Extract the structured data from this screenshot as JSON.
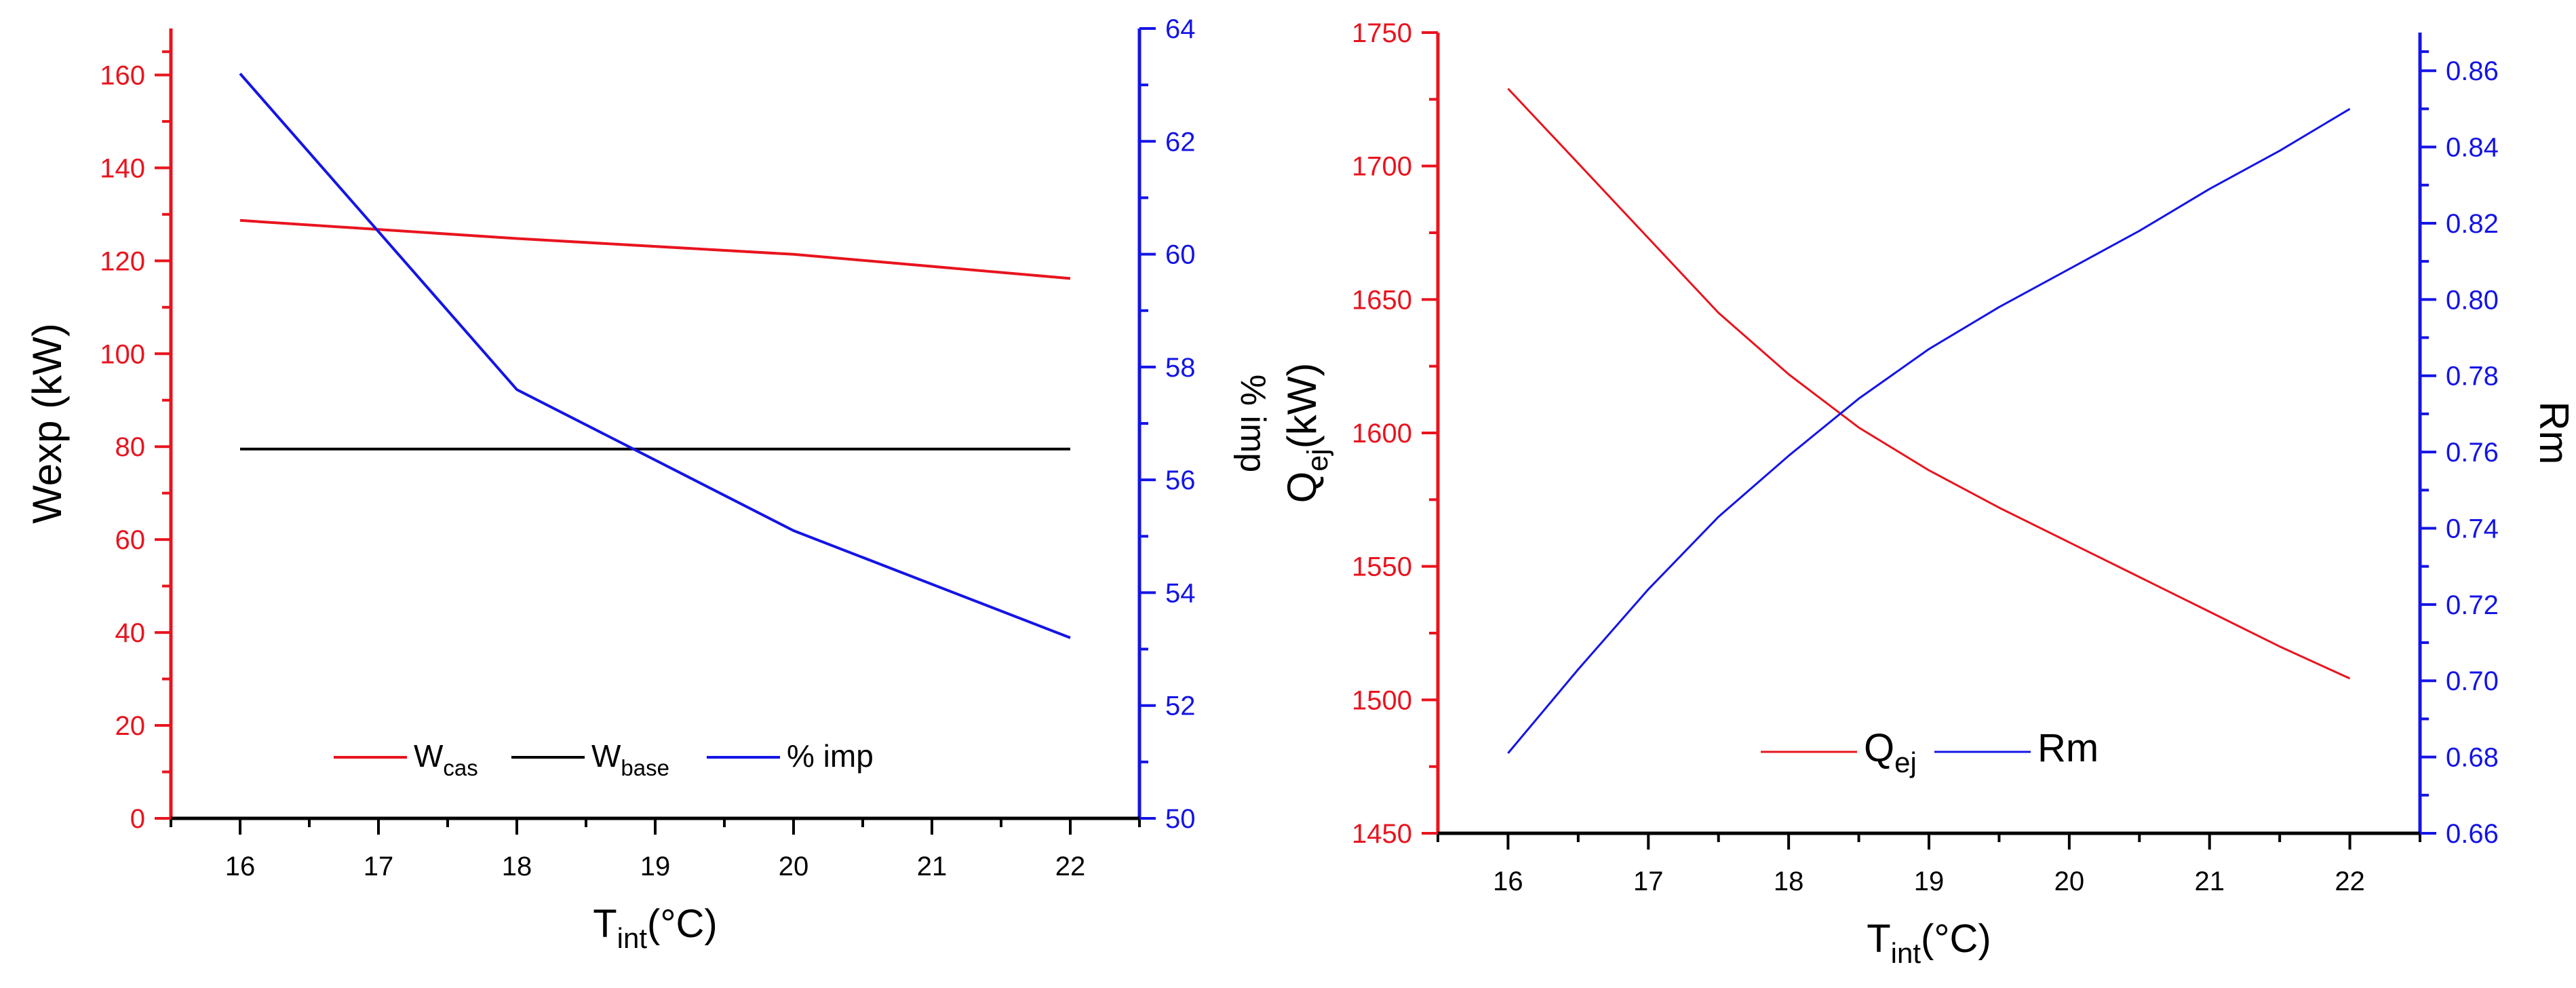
{
  "chart_data": [
    {
      "type": "line",
      "panel": "left",
      "x": [
        16,
        17,
        18,
        19,
        20,
        21,
        22
      ],
      "xlabel": {
        "main": "T",
        "sub": "int",
        "rest": "(°C)"
      },
      "xlim": [
        15.5,
        22.5
      ],
      "xticks": [
        16,
        17,
        18,
        19,
        20,
        21,
        22
      ],
      "ylabel_left": "Wexp (kW)",
      "ylim_left": [
        0,
        170
      ],
      "yticks_left": [
        0,
        20,
        40,
        60,
        80,
        100,
        120,
        140,
        160
      ],
      "ylabel_right": "% imp",
      "ylim_right": [
        50,
        64
      ],
      "yticks_right": [
        50,
        52,
        54,
        56,
        58,
        60,
        62,
        64
      ],
      "left_axis_color": "#e8141e",
      "right_axis_color": "#1414e6",
      "series": [
        {
          "name": "W",
          "sub": "cas",
          "axis": "left",
          "color": "#e8141e",
          "x": [
            16,
            18,
            20,
            22
          ],
          "values": [
            128.7,
            124.8,
            121.4,
            116.2
          ]
        },
        {
          "name": "W",
          "sub": "base",
          "axis": "left",
          "color": "#000000",
          "x": [
            16,
            22
          ],
          "values": [
            79.5,
            79.5
          ]
        },
        {
          "name": "% imp",
          "sub": "",
          "axis": "right",
          "color": "#1414e6",
          "x": [
            16,
            18,
            20,
            22
          ],
          "values": [
            63.2,
            57.6,
            55.1,
            53.2
          ]
        }
      ],
      "legend": "bottom-center"
    },
    {
      "type": "line",
      "panel": "right",
      "x": [
        16,
        17,
        18,
        19,
        20,
        21,
        22
      ],
      "xlabel": {
        "main": "T",
        "sub": "int",
        "rest": "(°C)"
      },
      "xlim": [
        15.5,
        22.5
      ],
      "xticks": [
        16,
        17,
        18,
        19,
        20,
        21,
        22
      ],
      "ylabel_left": {
        "main": "Q",
        "sub": "ej",
        "rest": "(kW)"
      },
      "ylim_left": [
        1450,
        1750
      ],
      "yticks_left": [
        1450,
        1500,
        1550,
        1600,
        1650,
        1700,
        1750
      ],
      "ylabel_right": "Rm",
      "ylim_right": [
        0.66,
        0.87
      ],
      "yticks_right": [
        0.66,
        0.68,
        0.7,
        0.72,
        0.74,
        0.76,
        0.78,
        0.8,
        0.82,
        0.84,
        0.86
      ],
      "right_tick_labels": [
        "0.66",
        "0.68",
        "0.70",
        "0.72",
        "0.74",
        "0.76",
        "0.78",
        "0.80",
        "0.82",
        "0.84",
        "0.86"
      ],
      "left_axis_color": "#e8141e",
      "right_axis_color": "#1414e6",
      "series": [
        {
          "name": "Q",
          "sub": "ej",
          "axis": "left",
          "color": "#e8141e",
          "x": [
            16,
            16.5,
            17,
            17.5,
            18,
            18.5,
            19,
            19.5,
            20,
            20.5,
            21,
            21.5,
            22
          ],
          "values": [
            1729,
            1701,
            1673,
            1645,
            1622,
            1602,
            1586,
            1572,
            1559,
            1546,
            1533,
            1520,
            1508
          ]
        },
        {
          "name": "Rm",
          "sub": "",
          "axis": "right",
          "color": "#1414e6",
          "x": [
            16,
            16.5,
            17,
            17.5,
            18,
            18.5,
            19,
            19.5,
            20,
            20.5,
            21,
            21.5,
            22
          ],
          "values": [
            0.681,
            0.703,
            0.724,
            0.743,
            0.759,
            0.774,
            0.787,
            0.798,
            0.808,
            0.818,
            0.829,
            0.839,
            0.85
          ]
        }
      ],
      "legend": "bottom-center"
    }
  ]
}
